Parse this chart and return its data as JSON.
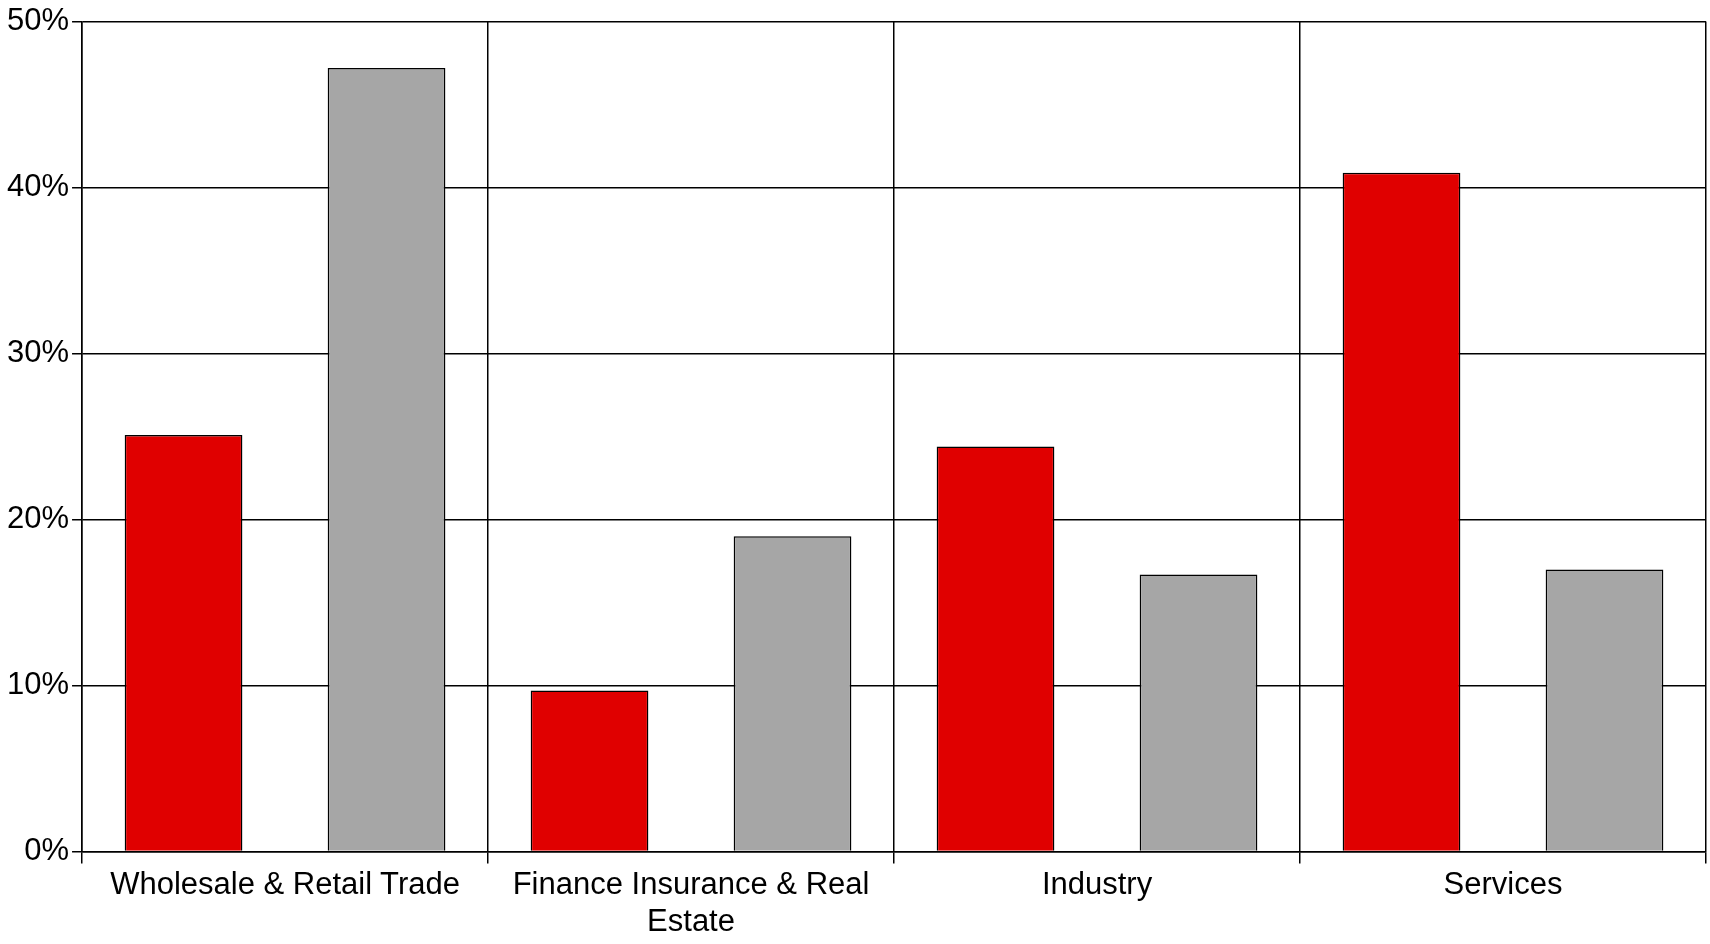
{
  "chart_data": {
    "type": "bar",
    "categories": [
      "Wholesale & Retail Trade",
      "Finance Insurance & Real Estate",
      "Industry",
      "Services"
    ],
    "series": [
      {
        "color": "#e00000",
        "values": [
          25.1,
          9.7,
          24.4,
          40.9
        ]
      },
      {
        "color": "#a6a6a6",
        "values": [
          47.2,
          19.0,
          16.7,
          17.0
        ]
      }
    ],
    "ylim": [
      0,
      50
    ],
    "yticks": [
      {
        "value": 0,
        "label": "0%"
      },
      {
        "value": 10,
        "label": "10%"
      },
      {
        "value": 20,
        "label": "20%"
      },
      {
        "value": 30,
        "label": "30%"
      },
      {
        "value": 40,
        "label": "40%"
      },
      {
        "value": 50,
        "label": "50%"
      }
    ],
    "grid": true
  }
}
